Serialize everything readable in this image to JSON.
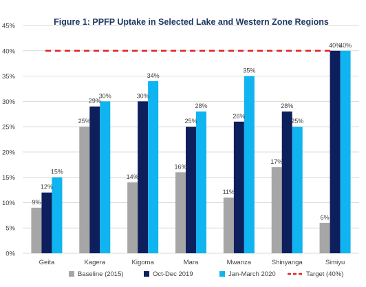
{
  "chart_data": {
    "type": "bar",
    "title": "Figure 1: PPFP Uptake in Selected Lake and Western Zone Regions",
    "xlabel": "",
    "ylabel": "",
    "categories": [
      "Geita",
      "Kagera",
      "Kigoma",
      "Mara",
      "Mwanza",
      "Shinyanga",
      "Simiyu"
    ],
    "series": [
      {
        "name": "Baseline (2015)",
        "color": "#a6a6a6",
        "values": [
          9,
          25,
          14,
          16,
          11,
          17,
          6
        ],
        "labels": [
          "9%",
          "25%",
          "14%",
          "16%",
          "11%",
          "17%",
          "6%"
        ]
      },
      {
        "name": "Oct-Dec 2019",
        "color": "#0d1f5c",
        "values": [
          12,
          29,
          30,
          25,
          26,
          28,
          40
        ],
        "labels": [
          "12%",
          "29%",
          "30%",
          "25%",
          "26%",
          "28%",
          "40%"
        ]
      },
      {
        "name": "Jan-March 2020",
        "color": "#0fb4f0",
        "values": [
          15,
          30,
          34,
          28,
          35,
          25,
          40
        ],
        "labels": [
          "15%",
          "30%",
          "34%",
          "28%",
          "35%",
          "25%",
          "40%"
        ]
      }
    ],
    "target": {
      "name": "Target (40%)",
      "value": 40,
      "color": "#e02020"
    },
    "ylim": [
      0,
      45
    ],
    "yticks": [
      0,
      5,
      10,
      15,
      20,
      25,
      30,
      35,
      40,
      45
    ],
    "ytick_labels": [
      "0%",
      "5%",
      "10%",
      "15%",
      "20%",
      "25%",
      "30%",
      "35%",
      "40%",
      "45%"
    ],
    "grid": true,
    "legend_position": "bottom"
  }
}
